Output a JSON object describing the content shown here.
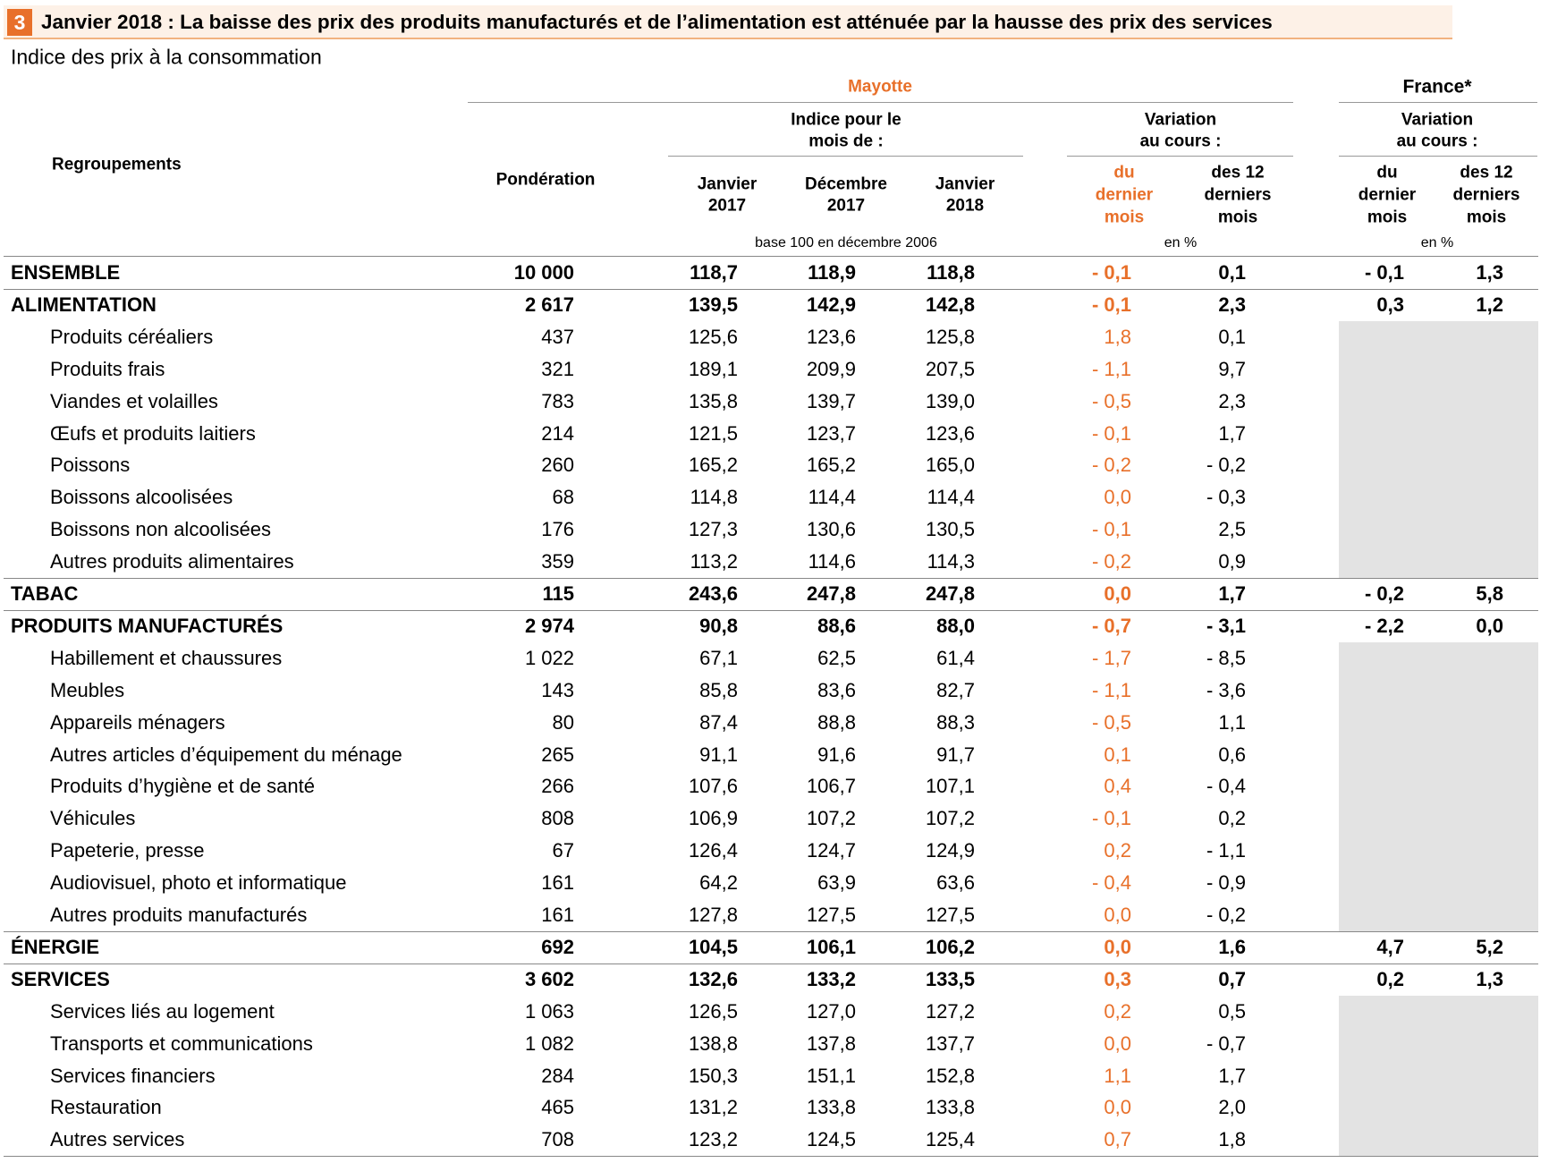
{
  "header": {
    "number": "3",
    "title": "Janvier 2018 : La baisse des prix des produits manufacturés et de l’alimentation est atténuée par la hausse des prix des services",
    "subtitle": "Indice des prix à la consommation"
  },
  "table": {
    "header": {
      "mayotte": "Mayotte",
      "france": "France*",
      "regroupements": "Regroupements",
      "ponderation": "Pondération",
      "indice": [
        "Indice pour le",
        "mois de :"
      ],
      "variation_mayotte": [
        "Variation",
        "au cours :"
      ],
      "variation_france": [
        "Variation",
        "au cours :"
      ],
      "months": [
        [
          "Janvier",
          "2017"
        ],
        [
          "Décembre",
          "2017"
        ],
        [
          "Janvier",
          "2018"
        ]
      ],
      "var_mayotte": [
        [
          "du",
          "dernier",
          "mois"
        ],
        [
          "des 12",
          "derniers",
          "mois"
        ]
      ],
      "var_france": [
        [
          "du",
          "dernier",
          "mois"
        ],
        [
          "des 12",
          "derniers",
          "mois"
        ]
      ],
      "unit_indice": "base 100 en décembre 2006",
      "unit_mayotte": "en %",
      "unit_france": "en %"
    },
    "rows": [
      {
        "level": "main",
        "label": "ENSEMBLE",
        "cells": [
          "10 000",
          "118,7",
          "118,9",
          "118,8",
          "- 0,1",
          "0,1",
          "- 0,1",
          "1,3"
        ]
      },
      {
        "level": "main",
        "label": "ALIMENTATION",
        "cells": [
          "2 617",
          "139,5",
          "142,9",
          "142,8",
          "- 0,1",
          "2,3",
          "0,3",
          "1,2"
        ]
      },
      {
        "level": "sub",
        "label": "Produits céréaliers",
        "cells": [
          "437",
          "125,6",
          "123,6",
          "125,8",
          "1,8",
          "0,1"
        ]
      },
      {
        "level": "sub",
        "label": "Produits frais",
        "cells": [
          "321",
          "189,1",
          "209,9",
          "207,5",
          "- 1,1",
          "9,7"
        ]
      },
      {
        "level": "sub",
        "label": "Viandes et volailles",
        "cells": [
          "783",
          "135,8",
          "139,7",
          "139,0",
          "- 0,5",
          "2,3"
        ]
      },
      {
        "level": "sub",
        "label": "Œufs et produits laitiers",
        "cells": [
          "214",
          "121,5",
          "123,7",
          "123,6",
          "- 0,1",
          "1,7"
        ]
      },
      {
        "level": "sub",
        "label": "Poissons",
        "cells": [
          "260",
          "165,2",
          "165,2",
          "165,0",
          "- 0,2",
          "- 0,2"
        ]
      },
      {
        "level": "sub",
        "label": "Boissons alcoolisées",
        "cells": [
          "68",
          "114,8",
          "114,4",
          "114,4",
          "0,0",
          "- 0,3"
        ]
      },
      {
        "level": "sub",
        "label": "Boissons non alcoolisées",
        "cells": [
          "176",
          "127,3",
          "130,6",
          "130,5",
          "- 0,1",
          "2,5"
        ]
      },
      {
        "level": "sub",
        "label": "Autres produits alimentaires",
        "cells": [
          "359",
          "113,2",
          "114,6",
          "114,3",
          "- 0,2",
          "0,9"
        ]
      },
      {
        "level": "main",
        "label": "TABAC",
        "cells": [
          "115",
          "243,6",
          "247,8",
          "247,8",
          "0,0",
          "1,7",
          "- 0,2",
          "5,8"
        ]
      },
      {
        "level": "main",
        "label": "PRODUITS MANUFACTURÉS",
        "cells": [
          "2 974",
          "90,8",
          "88,6",
          "88,0",
          "- 0,7",
          "- 3,1",
          "- 2,2",
          "0,0"
        ]
      },
      {
        "level": "sub",
        "label": "Habillement et chaussures",
        "cells": [
          "1 022",
          "67,1",
          "62,5",
          "61,4",
          "- 1,7",
          "- 8,5"
        ]
      },
      {
        "level": "sub",
        "label": "Meubles",
        "cells": [
          "143",
          "85,8",
          "83,6",
          "82,7",
          "- 1,1",
          "- 3,6"
        ]
      },
      {
        "level": "sub",
        "label": "Appareils ménagers",
        "cells": [
          "80",
          "87,4",
          "88,8",
          "88,3",
          "- 0,5",
          "1,1"
        ]
      },
      {
        "level": "sub",
        "label": "Autres articles d’équipement du ménage",
        "cells": [
          "265",
          "91,1",
          "91,6",
          "91,7",
          "0,1",
          "0,6"
        ]
      },
      {
        "level": "sub",
        "label": "Produits d’hygiène et de santé",
        "cells": [
          "266",
          "107,6",
          "106,7",
          "107,1",
          "0,4",
          "- 0,4"
        ]
      },
      {
        "level": "sub",
        "label": "Véhicules",
        "cells": [
          "808",
          "106,9",
          "107,2",
          "107,2",
          "- 0,1",
          "0,2"
        ]
      },
      {
        "level": "sub",
        "label": "Papeterie, presse",
        "cells": [
          "67",
          "126,4",
          "124,7",
          "124,9",
          "0,2",
          "- 1,1"
        ]
      },
      {
        "level": "sub",
        "label": "Audiovisuel, photo et informatique",
        "cells": [
          "161",
          "64,2",
          "63,9",
          "63,6",
          "- 0,4",
          "- 0,9"
        ]
      },
      {
        "level": "sub",
        "label": "Autres produits manufacturés",
        "cells": [
          "161",
          "127,8",
          "127,5",
          "127,5",
          "0,0",
          "- 0,2"
        ]
      },
      {
        "level": "main",
        "label": "ÉNERGIE",
        "cells": [
          "692",
          "104,5",
          "106,1",
          "106,2",
          "0,0",
          "1,6",
          "4,7",
          "5,2"
        ]
      },
      {
        "level": "main",
        "label": "SERVICES",
        "cells": [
          "3 602",
          "132,6",
          "133,2",
          "133,5",
          "0,3",
          "0,7",
          "0,2",
          "1,3"
        ]
      },
      {
        "level": "sub",
        "label": "Services liés au logement",
        "cells": [
          "1 063",
          "126,5",
          "127,0",
          "127,2",
          "0,2",
          "0,5"
        ]
      },
      {
        "level": "sub",
        "label": "Transports et communications",
        "cells": [
          "1 082",
          "138,8",
          "137,8",
          "137,7",
          "0,0",
          "- 0,7"
        ]
      },
      {
        "level": "sub",
        "label": "Services financiers",
        "cells": [
          "284",
          "150,3",
          "151,1",
          "152,8",
          "1,1",
          "1,7"
        ]
      },
      {
        "level": "sub",
        "label": "Restauration",
        "cells": [
          "465",
          "131,2",
          "133,8",
          "133,8",
          "0,0",
          "2,0"
        ]
      },
      {
        "level": "sub",
        "label": "Autres services",
        "cells": [
          "708",
          "123,2",
          "124,5",
          "125,4",
          "0,7",
          "1,8"
        ]
      }
    ]
  }
}
